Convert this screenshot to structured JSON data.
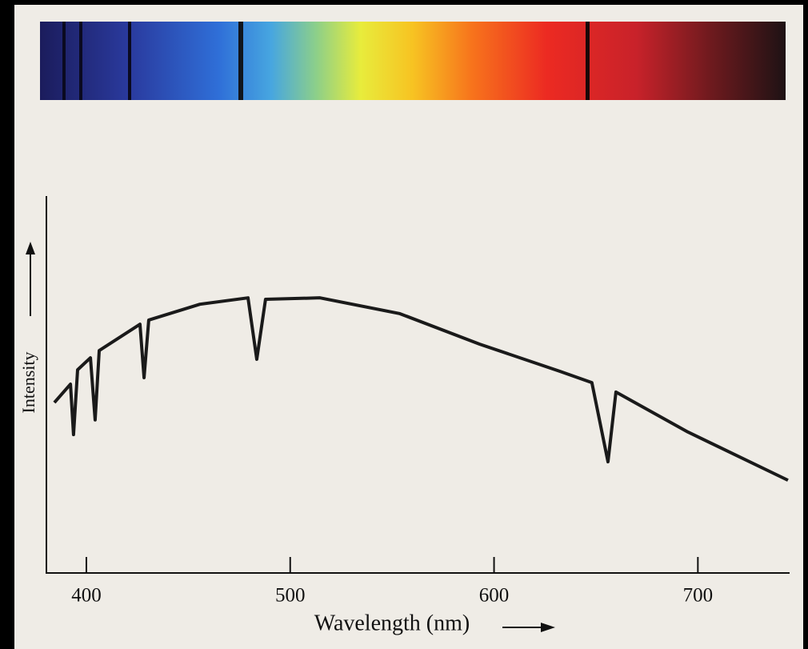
{
  "chart_data": {
    "type": "line",
    "x_label": "Wavelength (nm)",
    "y_label": "Intensity",
    "x": [
      384.3,
      392.2,
      393.7,
      395.7,
      402,
      404.3,
      406.3,
      426.3,
      428.3,
      430.6,
      455.7,
      479.3,
      483.6,
      487.9,
      514.6,
      553.8,
      593,
      632.3,
      648,
      655.9,
      659.8,
      695.1,
      744.2
    ],
    "series": [
      {
        "color": "#1a1a1a",
        "values": [
          45.2,
          50.1,
          36.7,
          53.9,
          57.1,
          40.6,
          59,
          66,
          51.8,
          67.1,
          71.3,
          73,
          56.7,
          72.6,
          73,
          68.8,
          60.7,
          53.5,
          50.5,
          29.5,
          48,
          37.4,
          24.6
        ]
      }
    ],
    "xlim": [
      380,
      745
    ],
    "ylim": [
      0,
      100
    ],
    "xticks": [
      400,
      500,
      600,
      700
    ]
  }
}
